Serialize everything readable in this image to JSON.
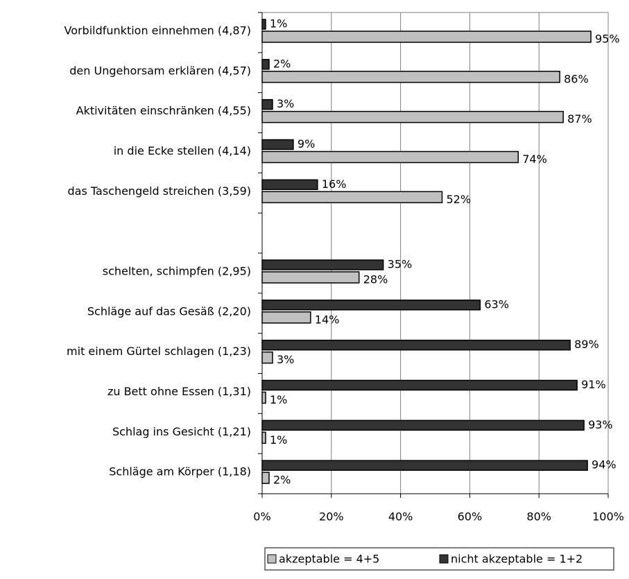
{
  "chart_data": {
    "type": "bar",
    "orientation": "horizontal",
    "categories": [
      "Vorbildfunktion einnehmen  (4,87)",
      "den Ungehorsam erklären  (4,57)",
      "Aktivitäten einschränken  (4,55)",
      "in die Ecke stellen  (4,14)",
      "das Taschengeld streichen  (3,59)",
      null,
      "schelten, schimpfen  (2,95)",
      "Schläge auf das Gesäß  (2,20)",
      "mit einem Gürtel schlagen  (1,23)",
      "zu Bett ohne Essen  (1,31)",
      "Schlag ins Gesicht  (1,21)",
      "Schläge am Körper  (1,18)"
    ],
    "series": [
      {
        "name": "akzeptable = 4+5",
        "color": "#c0c0c0",
        "values": [
          95,
          86,
          87,
          74,
          52,
          null,
          28,
          14,
          3,
          1,
          1,
          2
        ],
        "value_labels": [
          "95%",
          "86%",
          "87%",
          "74%",
          "52%",
          null,
          "28%",
          "14%",
          "3%",
          "1%",
          "1%",
          "2%"
        ]
      },
      {
        "name": "nicht akzeptable = 1+2",
        "color": "#333333",
        "values": [
          1,
          2,
          3,
          9,
          16,
          null,
          35,
          63,
          89,
          91,
          93,
          94
        ],
        "value_labels": [
          "1%",
          "2%",
          "3%",
          "9%",
          "16%",
          null,
          "35%",
          "63%",
          "89%",
          "91%",
          "93%",
          "94%"
        ]
      }
    ],
    "xlim": [
      0,
      100
    ],
    "xticks": [
      {
        "value": 0,
        "label": "0%"
      },
      {
        "value": 20,
        "label": "20%"
      },
      {
        "value": 40,
        "label": "40%"
      },
      {
        "value": 60,
        "label": "60%"
      },
      {
        "value": 80,
        "label": "80%"
      },
      {
        "value": 100,
        "label": "100%"
      }
    ],
    "grid": true,
    "legend": "bottom"
  }
}
